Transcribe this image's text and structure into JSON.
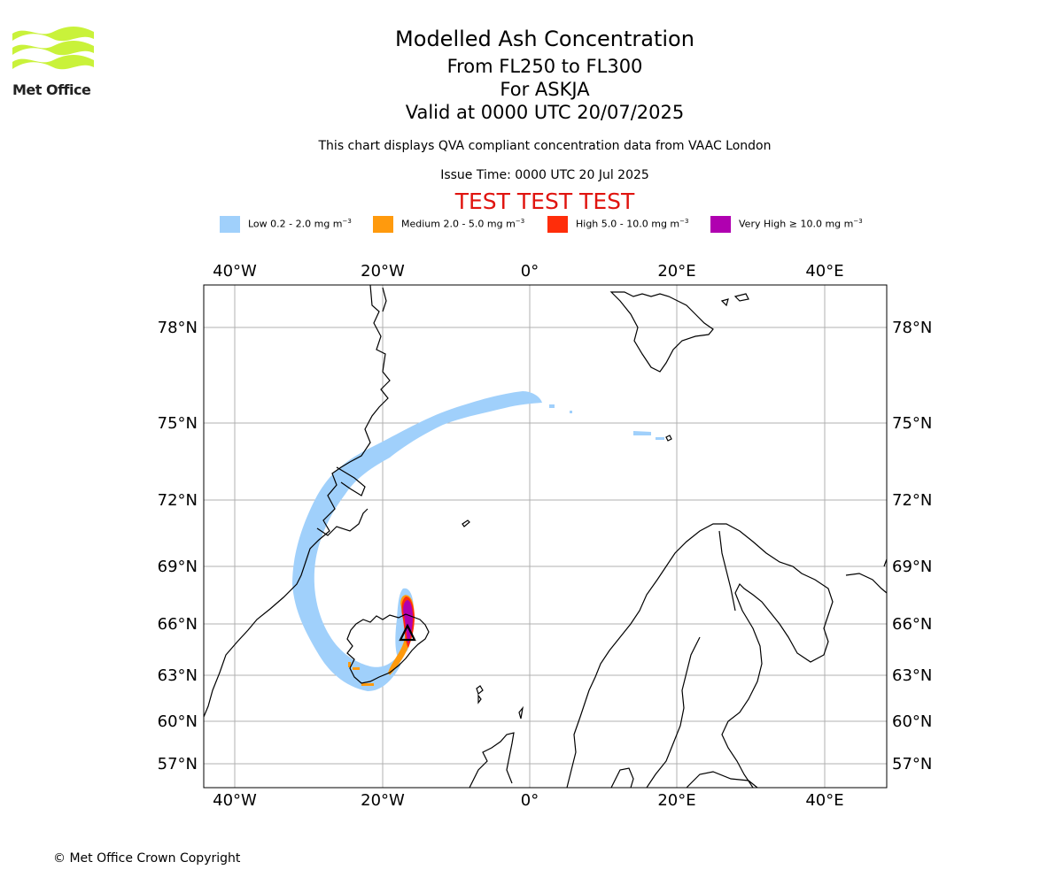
{
  "logo": {
    "text": "Met Office",
    "brand_color": "#c9f23a"
  },
  "titles": {
    "main": "Modelled Ash Concentration",
    "flight_levels": "From FL250 to FL300",
    "volcano": "For ASKJA",
    "valid": "Valid at 0000 UTC 20/07/2025",
    "source_note": "This chart displays QVA compliant concentration data from VAAC London",
    "issue_time": "Issue Time: 0000 UTC 20 Jul 2025",
    "test_banner": "TEST TEST TEST"
  },
  "legend": [
    {
      "label": "Low 0.2 - 2.0 mg m",
      "exp": "−3",
      "color": "#a0d0fb"
    },
    {
      "label": "Medium 2.0 - 5.0 mg m",
      "exp": "−3",
      "color": "#ff9a0d"
    },
    {
      "label": "High 5.0 - 10.0 mg m",
      "exp": "−3",
      "color": "#ff2d0a"
    },
    {
      "label": "Very High  ≥  10.0 mg m",
      "exp": "−3",
      "color": "#b000b0"
    }
  ],
  "map": {
    "lon_labels": [
      "40°W",
      "20°W",
      "0°",
      "20°E",
      "40°E"
    ],
    "lat_labels": [
      "78°N",
      "75°N",
      "72°N",
      "69°N",
      "66°N",
      "63°N",
      "60°N",
      "57°N"
    ],
    "gridline_color": "#b0b0b0",
    "volcano_marker": "triangle"
  },
  "footer": {
    "copyright": "© Met Office Crown Copyright"
  }
}
